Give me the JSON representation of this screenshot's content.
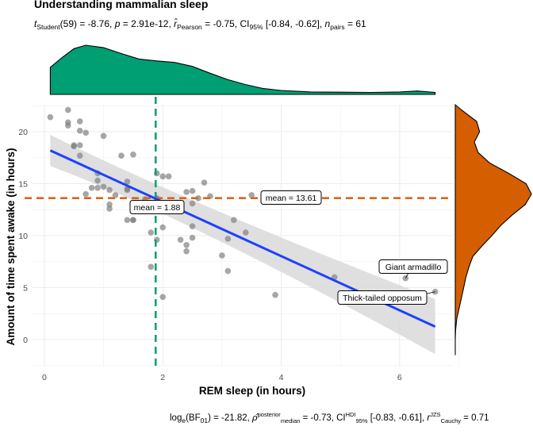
{
  "chart_data": {
    "type": "scatter",
    "title": "Understanding mammalian sleep",
    "subtitle": {
      "parts": [
        {
          "t": "t",
          "style": "italic"
        },
        {
          "t": "Student",
          "style": "sub"
        },
        {
          "t": "(59) = -8.76, "
        },
        {
          "t": "p",
          "style": "italic"
        },
        {
          "t": " = 2.91e-12, "
        },
        {
          "t": "r̂",
          "style": "italic"
        },
        {
          "t": "Pearson",
          "style": "sub"
        },
        {
          "t": " = -0.75, CI"
        },
        {
          "t": "95%",
          "style": "sub"
        },
        {
          "t": " [-0.84, -0.62], "
        },
        {
          "t": "n",
          "style": "italic"
        },
        {
          "t": "pairs",
          "style": "sub"
        },
        {
          "t": " = 61"
        }
      ]
    },
    "caption": {
      "parts": [
        {
          "t": "log"
        },
        {
          "t": "e",
          "style": "sub"
        },
        {
          "t": "(BF"
        },
        {
          "t": "01",
          "style": "sub"
        },
        {
          "t": ") = -21.82, "
        },
        {
          "t": "ρ̂",
          "style": "italic"
        },
        {
          "t": "posterior",
          "style": "sup"
        },
        {
          "t": "median",
          "style": "sub2"
        },
        {
          "t": " = -0.73, CI"
        },
        {
          "t": "HDI",
          "style": "sup"
        },
        {
          "t": "95%",
          "style": "sub2"
        },
        {
          "t": " [-0.83, -0.61], "
        },
        {
          "t": "r",
          "style": "italic"
        },
        {
          "t": "JZS",
          "style": "sup"
        },
        {
          "t": "Cauchy",
          "style": "sub2"
        },
        {
          "t": " = 0.71"
        }
      ]
    },
    "xlabel": "REM sleep (in hours)",
    "ylabel": "Amount of time spent awake (in hours)",
    "xlim": [
      -0.2,
      6.9
    ],
    "ylim": [
      -2.6,
      22.6
    ],
    "xticks": [
      0,
      2,
      4,
      6
    ],
    "yticks": [
      0,
      5,
      10,
      15,
      20
    ],
    "grid": true,
    "points": [
      [
        0.1,
        21.4
      ],
      [
        0.4,
        22.1
      ],
      [
        0.4,
        20.9
      ],
      [
        0.4,
        20.6
      ],
      [
        0.5,
        18.7
      ],
      [
        0.5,
        18.6
      ],
      [
        0.6,
        21.0
      ],
      [
        0.6,
        18.7
      ],
      [
        0.6,
        17.7
      ],
      [
        0.6,
        20.1
      ],
      [
        0.7,
        19.9
      ],
      [
        0.7,
        14.0
      ],
      [
        0.8,
        14.6
      ],
      [
        0.9,
        16.0
      ],
      [
        0.9,
        14.6
      ],
      [
        0.9,
        15.3
      ],
      [
        1.0,
        14.7
      ],
      [
        1.0,
        19.6
      ],
      [
        1.1,
        14.4
      ],
      [
        1.1,
        13.0
      ],
      [
        1.1,
        12.6
      ],
      [
        1.2,
        13.9
      ],
      [
        1.3,
        17.7
      ],
      [
        1.4,
        15.2
      ],
      [
        1.4,
        14.5
      ],
      [
        1.4,
        14.4
      ],
      [
        1.4,
        11.5
      ],
      [
        1.5,
        11.5
      ],
      [
        1.5,
        17.8
      ],
      [
        1.5,
        11.5
      ],
      [
        1.7,
        13.5
      ],
      [
        1.7,
        12.6
      ],
      [
        1.8,
        10.3
      ],
      [
        1.8,
        7.0
      ],
      [
        1.9,
        16.0
      ],
      [
        1.9,
        13.6
      ],
      [
        1.9,
        9.6
      ],
      [
        2.0,
        15.7
      ],
      [
        2.0,
        10.8
      ],
      [
        2.0,
        4.1
      ],
      [
        2.1,
        15.7
      ],
      [
        2.2,
        12.6
      ],
      [
        2.3,
        9.6
      ],
      [
        2.3,
        13.0
      ],
      [
        2.4,
        14.2
      ],
      [
        2.4,
        9.1
      ],
      [
        2.4,
        8.5
      ],
      [
        2.5,
        9.8
      ],
      [
        2.5,
        10.9
      ],
      [
        2.5,
        14.3
      ],
      [
        2.5,
        13.1
      ],
      [
        2.6,
        13.6
      ],
      [
        2.7,
        15.1
      ],
      [
        2.8,
        13.8
      ],
      [
        3.0,
        8.1
      ],
      [
        3.1,
        9.7
      ],
      [
        3.2,
        11.5
      ],
      [
        3.1,
        6.6
      ],
      [
        3.4,
        10.3
      ],
      [
        3.5,
        13.9
      ],
      [
        3.9,
        4.3
      ]
    ],
    "labeled_points": [
      {
        "x": 6.1,
        "y": 5.9,
        "label": "Giant armadillo"
      },
      {
        "x": 6.6,
        "y": 4.6,
        "label": "Thick-tailed opposum"
      }
    ],
    "extra_points": [
      [
        4.9,
        6.0
      ]
    ],
    "regression": {
      "x": [
        0.1,
        6.6
      ],
      "y": [
        18.2,
        1.25
      ],
      "ci_lower_y": [
        16.7,
        -1.4
      ],
      "ci_upper_y": [
        19.7,
        3.9
      ],
      "ci_mid": {
        "x": 2.4,
        "lower": 11.8,
        "upper": 13.2
      }
    },
    "mean_x": {
      "value": 1.88,
      "label": "mean = 1.88"
    },
    "mean_y": {
      "value": 13.61,
      "label": "mean = 13.61"
    },
    "marginal_x_density": [
      [
        0.1,
        0.55
      ],
      [
        0.3,
        0.75
      ],
      [
        0.5,
        0.93
      ],
      [
        0.7,
        1.0
      ],
      [
        1.0,
        0.95
      ],
      [
        1.3,
        0.83
      ],
      [
        1.6,
        0.72
      ],
      [
        1.9,
        0.68
      ],
      [
        2.2,
        0.65
      ],
      [
        2.5,
        0.57
      ],
      [
        2.8,
        0.43
      ],
      [
        3.1,
        0.3
      ],
      [
        3.4,
        0.2
      ],
      [
        3.7,
        0.12
      ],
      [
        4.0,
        0.08
      ],
      [
        4.5,
        0.05
      ],
      [
        5.0,
        0.045
      ],
      [
        5.5,
        0.04
      ],
      [
        6.0,
        0.05
      ],
      [
        6.3,
        0.07
      ],
      [
        6.6,
        0.04
      ]
    ],
    "marginal_y_density": [
      [
        22.6,
        0.0
      ],
      [
        22.1,
        0.08
      ],
      [
        21,
        0.28
      ],
      [
        20,
        0.32
      ],
      [
        19,
        0.25
      ],
      [
        18,
        0.3
      ],
      [
        17,
        0.45
      ],
      [
        16,
        0.7
      ],
      [
        15,
        0.93
      ],
      [
        14,
        1.0
      ],
      [
        13,
        0.92
      ],
      [
        12,
        0.75
      ],
      [
        11,
        0.6
      ],
      [
        10,
        0.48
      ],
      [
        9,
        0.35
      ],
      [
        8,
        0.23
      ],
      [
        7,
        0.18
      ],
      [
        6,
        0.14
      ],
      [
        5,
        0.11
      ],
      [
        4,
        0.08
      ],
      [
        3,
        0.05
      ],
      [
        2,
        0.02
      ],
      [
        1,
        0.005
      ],
      [
        0,
        0.0
      ],
      [
        -1.5,
        0.0
      ]
    ],
    "colors": {
      "points": "#808080",
      "regression": "#1f40ff",
      "ci_band": "#d9d9d9",
      "mean_x_line": "#159e7a",
      "mean_y_line": "#d9661c",
      "x_marginal": "#009e73",
      "y_marginal": "#d55e00"
    }
  }
}
